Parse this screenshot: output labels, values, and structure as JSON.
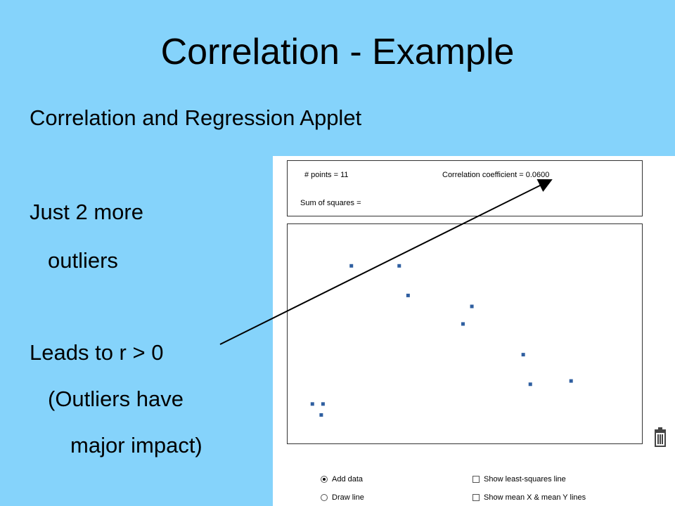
{
  "slide": {
    "title": "Correlation - Example",
    "subtitle": "Correlation and Regression Applet",
    "lines": [
      "Just 2 more",
      "outliers",
      "Leads to r > 0",
      "(Outliers have",
      "major impact)"
    ]
  },
  "applet": {
    "points_label": "# points = 11",
    "correlation_label": "Correlation coefficient = 0.0600",
    "sum_squares_label": "Sum of squares =",
    "controls": {
      "add_data": "Add data",
      "draw_line": "Draw line",
      "least_squares": "Show least-squares line",
      "mean_lines": "Show mean X & mean Y lines"
    },
    "selected_mode": "Add data"
  },
  "colors": {
    "background": "#85d3fb",
    "point": "#2f5fa0",
    "arrow": "#000000"
  },
  "icons": [
    "trash-icon",
    "arrow"
  ],
  "chart_data": {
    "type": "scatter",
    "title": "",
    "xlabel": "",
    "ylabel": "",
    "points": [
      {
        "x": 0.07,
        "y": 0.18
      },
      {
        "x": 0.1,
        "y": 0.18
      },
      {
        "x": 0.095,
        "y": 0.13
      },
      {
        "x": 0.18,
        "y": 0.81
      },
      {
        "x": 0.315,
        "y": 0.81
      },
      {
        "x": 0.34,
        "y": 0.675
      },
      {
        "x": 0.495,
        "y": 0.545
      },
      {
        "x": 0.52,
        "y": 0.625
      },
      {
        "x": 0.665,
        "y": 0.405
      },
      {
        "x": 0.685,
        "y": 0.27
      },
      {
        "x": 0.8,
        "y": 0.285
      }
    ],
    "xlim": [
      0,
      1
    ],
    "ylim": [
      0,
      1
    ],
    "grid": false
  }
}
